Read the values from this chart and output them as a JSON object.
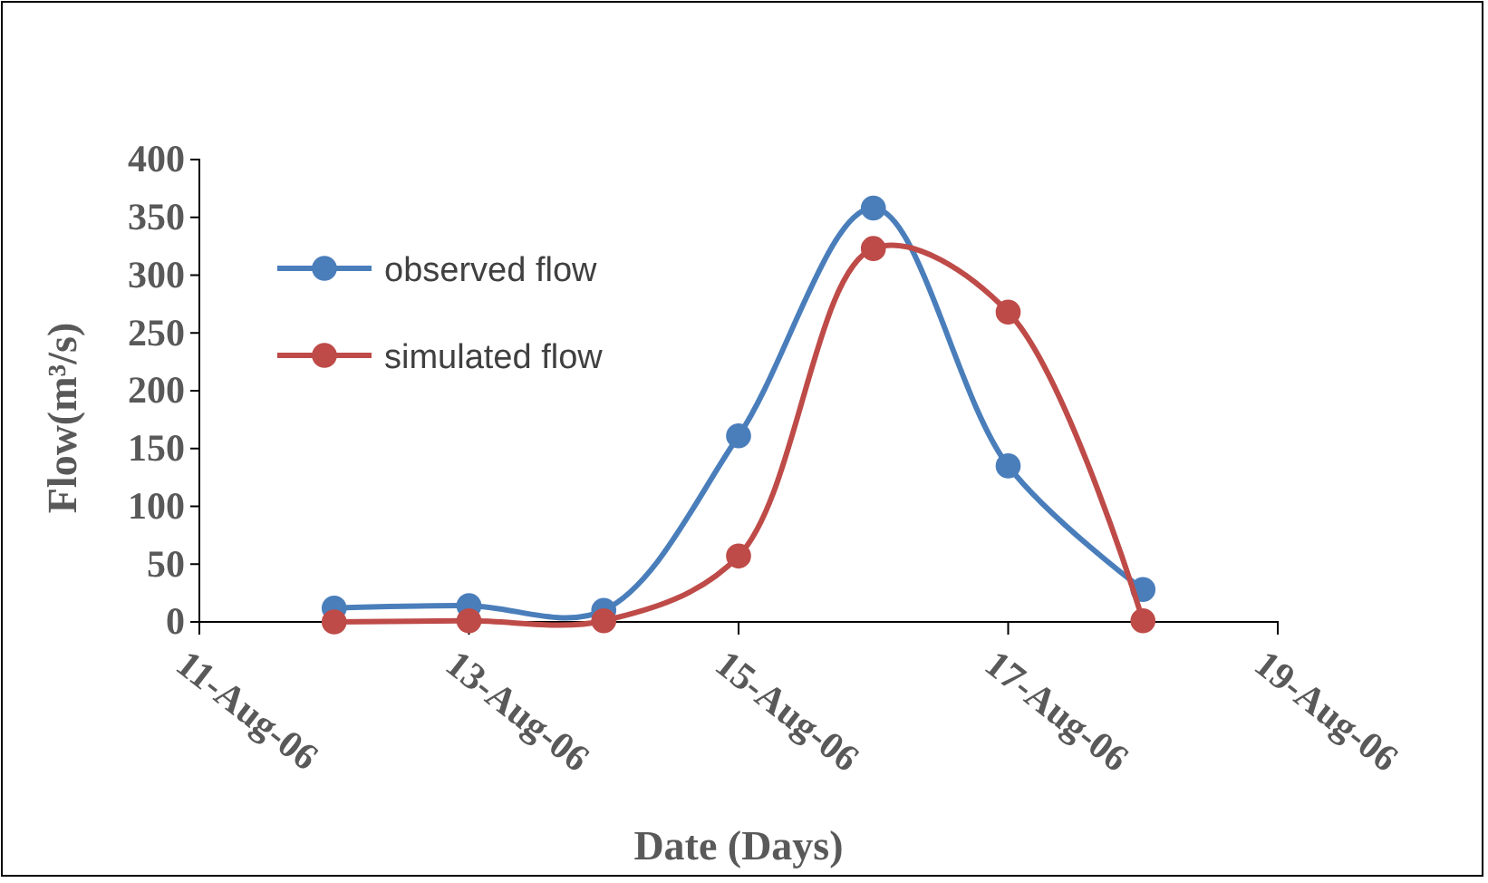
{
  "chart_data": {
    "type": "line",
    "xlabel": "Date (Days)",
    "ylabel": "Flow(m³/s)",
    "x": [
      "--08-12",
      "--08-13",
      "--08-14",
      "--08-15",
      "--08-16",
      "--08-17",
      "--08-18"
    ],
    "series": [
      {
        "name": "observed flow",
        "color": "#4a7ebb",
        "values": [
          12,
          14,
          10,
          161,
          358,
          135,
          28
        ]
      },
      {
        "name": "simulated flow",
        "color": "#be4b48",
        "values": [
          0,
          1,
          1,
          57,
          323,
          268,
          1
        ]
      }
    ],
    "xlim": [
      "--08-11",
      "--08-19"
    ],
    "xticks": [
      {
        "value": "--08-11",
        "label": "11-Aug-06"
      },
      {
        "value": "--08-13",
        "label": "13-Aug-06"
      },
      {
        "value": "--08-15",
        "label": "15-Aug-06"
      },
      {
        "value": "--08-17",
        "label": "17-Aug-06"
      },
      {
        "value": "--08-19",
        "label": "19-Aug-06"
      }
    ],
    "ylim": [
      0,
      400
    ],
    "yticks": [
      0,
      50,
      100,
      150,
      200,
      250,
      300,
      350,
      400
    ],
    "grid": false,
    "legend": "top left",
    "marker": "circle",
    "line_style": "solid"
  }
}
